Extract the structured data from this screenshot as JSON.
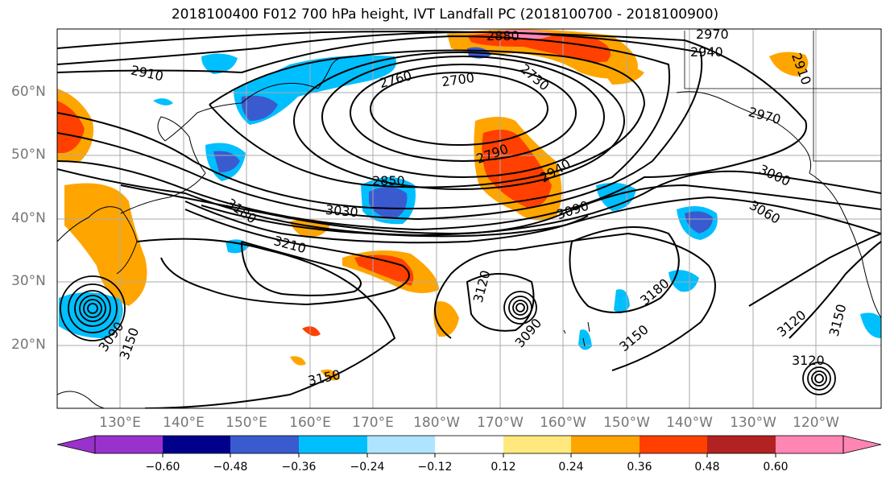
{
  "title": "2018100400 F012 700 hPa height, IVT Landfall PC (2018100700 - 2018100900)",
  "latitude_labels": [
    "60°N",
    "50°N",
    "40°N",
    "30°N",
    "20°N"
  ],
  "longitude_labels": [
    "130°E",
    "140°E",
    "150°E",
    "160°E",
    "170°E",
    "180°W",
    "170°W",
    "160°W",
    "150°W",
    "140°W",
    "130°W",
    "120°W"
  ],
  "contour_labels": [
    "2880",
    "2940",
    "2970",
    "2910",
    "2910",
    "2760",
    "2700",
    "2730",
    "2970",
    "2790",
    "2940",
    "2850",
    "3000",
    "3030",
    "3090",
    "3180",
    "3060",
    "3210",
    "3120",
    "3180",
    "3120",
    "3090",
    "3150",
    "3090",
    "3150",
    "3150",
    "3120",
    "3150"
  ],
  "colorbar": {
    "tick_labels": [
      "−0.60",
      "−0.48",
      "−0.36",
      "−0.24",
      "−0.12",
      "0.12",
      "0.24",
      "0.36",
      "0.48",
      "0.60"
    ],
    "colors": [
      "#9932cc",
      "#00008b",
      "#3a5bd0",
      "#00bfff",
      "#aee4ff",
      "#ffffff",
      "#ffe97f",
      "#ffa500",
      "#ff4000",
      "#b22222",
      "#ff85b3"
    ]
  },
  "contour_color": "#000000"
}
